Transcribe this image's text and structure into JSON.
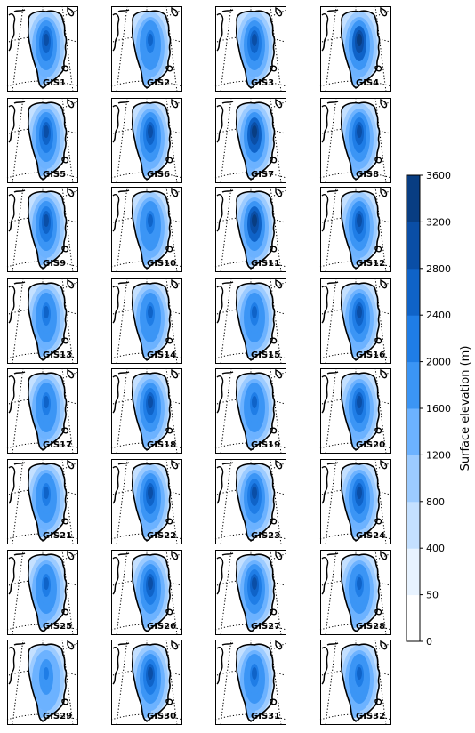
{
  "figure": {
    "colorbar": {
      "label": "Surface elevation (m)",
      "levels": [
        0,
        50,
        400,
        800,
        1200,
        1600,
        2000,
        2400,
        2800,
        3200,
        3600
      ],
      "tick_labels": [
        "0",
        "50",
        "400",
        "800",
        "1200",
        "1600",
        "2000",
        "2400",
        "2800",
        "3200",
        "3600"
      ],
      "colors": [
        "#ffffff",
        "#e8f3ff",
        "#c4e0ff",
        "#9ccbff",
        "#6cb2ff",
        "#3b95f5",
        "#1f7de6",
        "#0f63c8",
        "#0a4ea6",
        "#083d82",
        "#0a2a55"
      ]
    },
    "panels": [
      {
        "label": "GIS1",
        "strength": 0.7
      },
      {
        "label": "GIS2",
        "strength": 0.62
      },
      {
        "label": "GIS3",
        "strength": 0.74
      },
      {
        "label": "GIS4",
        "strength": 0.8
      },
      {
        "label": "GIS5",
        "strength": 0.72
      },
      {
        "label": "GIS6",
        "strength": 0.66
      },
      {
        "label": "GIS7",
        "strength": 0.92
      },
      {
        "label": "GIS8",
        "strength": 0.76
      },
      {
        "label": "GIS9",
        "strength": 0.7
      },
      {
        "label": "GIS10",
        "strength": 0.62
      },
      {
        "label": "GIS11",
        "strength": 0.84
      },
      {
        "label": "GIS12",
        "strength": 0.72
      },
      {
        "label": "GIS13",
        "strength": 0.64
      },
      {
        "label": "GIS14",
        "strength": 0.52
      },
      {
        "label": "GIS15",
        "strength": 0.56
      },
      {
        "label": "GIS16",
        "strength": 0.72
      },
      {
        "label": "GIS17",
        "strength": 0.64
      },
      {
        "label": "GIS18",
        "strength": 0.7
      },
      {
        "label": "GIS19",
        "strength": 0.6
      },
      {
        "label": "GIS20",
        "strength": 0.68
      },
      {
        "label": "GIS21",
        "strength": 0.64
      },
      {
        "label": "GIS22",
        "strength": 0.72
      },
      {
        "label": "GIS23",
        "strength": 0.66
      },
      {
        "label": "GIS24",
        "strength": 0.7
      },
      {
        "label": "GIS25",
        "strength": 0.64
      },
      {
        "label": "GIS26",
        "strength": 0.72
      },
      {
        "label": "GIS27",
        "strength": 0.7
      },
      {
        "label": "GIS28",
        "strength": 0.58
      },
      {
        "label": "GIS29",
        "strength": 0.46
      },
      {
        "label": "GIS30",
        "strength": 0.68
      },
      {
        "label": "GIS31",
        "strength": 0.62
      },
      {
        "label": "GIS32",
        "strength": 0.6
      }
    ]
  }
}
